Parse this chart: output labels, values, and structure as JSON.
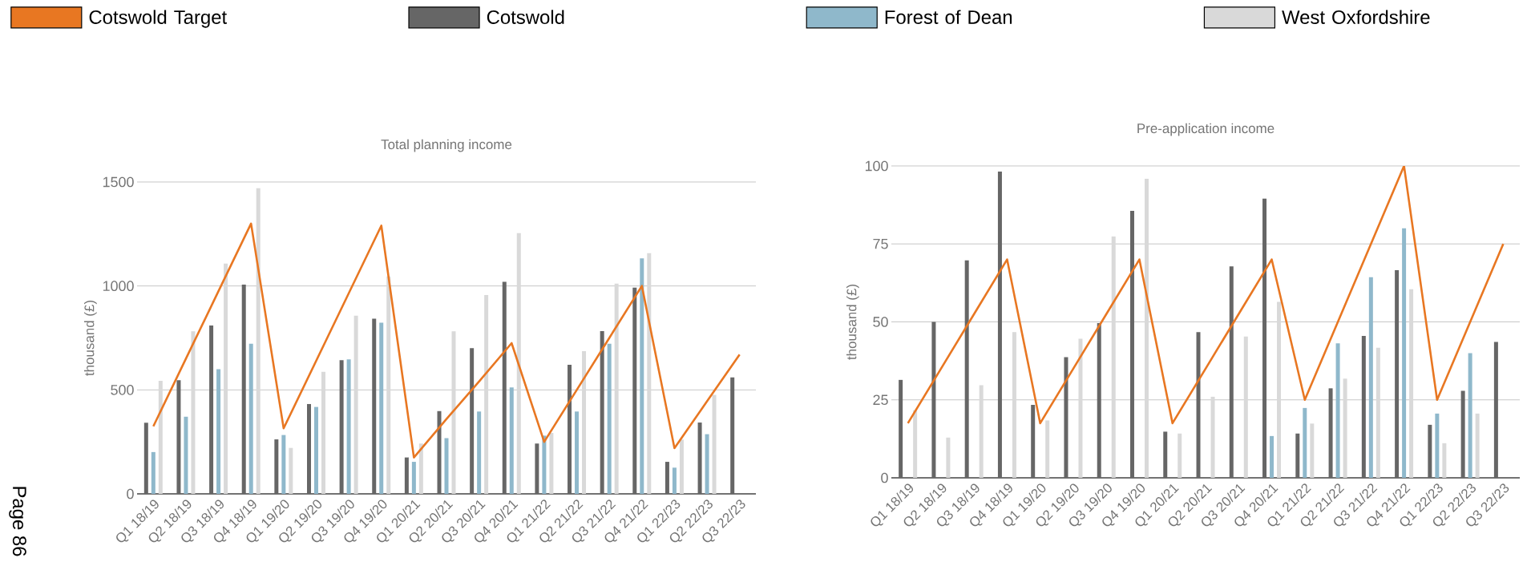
{
  "chart_data": [
    {
      "type": "bar",
      "title": "Total planning income",
      "ylabel": "thousand (£)",
      "categories": [
        "Q1 18/19",
        "Q2 18/19",
        "Q3 18/19",
        "Q4 18/19",
        "Q1 19/20",
        "Q2 19/20",
        "Q3 19/20",
        "Q4 19/20",
        "Q1 20/21",
        "Q2 20/21",
        "Q3 20/21",
        "Q4 20/21",
        "Q1 21/22",
        "Q2 21/22",
        "Q3 21/22",
        "Q4 21/22",
        "Q1 22/23",
        "Q2 22/23",
        "Q3 22/23"
      ],
      "series": [
        {
          "name": "Cotswold Target",
          "type": "line",
          "color": "#e87722",
          "values": [
            325,
            650,
            975,
            1300,
            315,
            640,
            965,
            1290,
            175,
            360,
            540,
            725,
            250,
            500,
            750,
            1000,
            220,
            445,
            670
          ]
        },
        {
          "name": "Cotswold",
          "color": "#666666",
          "values": [
            342,
            547,
            810,
            1006,
            262,
            432,
            643,
            843,
            175,
            398,
            701,
            1020,
            242,
            621,
            783,
            992,
            154,
            343,
            560
          ]
        },
        {
          "name": "Forest of Dean",
          "color": "#8fb8cb",
          "values": [
            201,
            371,
            600,
            722,
            283,
            418,
            647,
            823,
            154,
            268,
            396,
            512,
            280,
            396,
            722,
            1133,
            126,
            287,
            null
          ]
        },
        {
          "name": "West Oxfordshire",
          "color": "#d9d9d9",
          "values": [
            544,
            782,
            1108,
            1470,
            221,
            587,
            857,
            1046,
            242,
            782,
            956,
            1254,
            293,
            686,
            1011,
            1158,
            261,
            476,
            null
          ]
        }
      ],
      "ylim": [
        0,
        1500
      ],
      "yticks": [
        0,
        500,
        1000,
        1500
      ],
      "grid": "y",
      "legend": "top",
      "annotations": [
        "Page 86"
      ]
    },
    {
      "type": "bar",
      "title": "Pre-application income",
      "ylabel": "thousand (£)",
      "categories": [
        "Q1 18/19",
        "Q2 18/19",
        "Q3 18/19",
        "Q4 18/19",
        "Q1 19/20",
        "Q2 19/20",
        "Q3 19/20",
        "Q4 19/20",
        "Q1 20/21",
        "Q2 20/21",
        "Q3 20/21",
        "Q4 20/21",
        "Q1 21/22",
        "Q2 21/22",
        "Q3 21/22",
        "Q4 21/22",
        "Q1 22/23",
        "Q2 22/23",
        "Q3 22/23"
      ],
      "series": [
        {
          "type": "line",
          "color": "#e87722",
          "values": [
            17.5,
            35,
            52.5,
            70,
            17.5,
            35,
            52.5,
            70,
            17.5,
            35,
            52.5,
            70,
            25,
            50,
            75,
            100,
            25,
            50,
            75
          ]
        },
        {
          "color": "#666666",
          "values": [
            31.4,
            50,
            69.7,
            98.2,
            23.4,
            38.7,
            49.6,
            85.6,
            14.8,
            46.7,
            67.8,
            89.5,
            14.2,
            28.7,
            45.5,
            66.6,
            17,
            27.9,
            43.6
          ]
        },
        {
          "color": "#8fb8cb",
          "values": [
            null,
            null,
            null,
            null,
            null,
            null,
            null,
            null,
            null,
            null,
            null,
            13.4,
            22.4,
            43.1,
            64.3,
            80,
            20.6,
            40,
            null
          ]
        },
        {
          "color": "#d9d9d9",
          "values": [
            21.7,
            12.9,
            29.7,
            46.7,
            18.4,
            44.6,
            77.4,
            95.9,
            14.2,
            26,
            45.3,
            56.4,
            17.4,
            31.8,
            41.7,
            60.5,
            11.1,
            20.6,
            null
          ]
        }
      ],
      "ylim": [
        0,
        100
      ],
      "yticks": [
        0,
        25,
        50,
        75,
        100
      ],
      "grid": "y"
    }
  ]
}
